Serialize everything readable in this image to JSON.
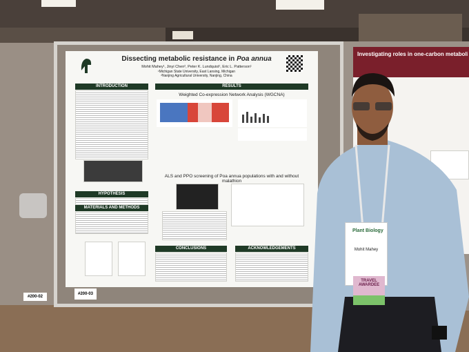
{
  "poster": {
    "title": "Dissecting metabolic resistance in",
    "title_species": "Poa annua",
    "authors": "Mohit Mahey¹, Jinyi Chen², Peter K. Lundquist¹, Eric L. Patterson¹",
    "affiliations": [
      "¹Michigan State University, East Lansing, Michigan",
      "²Nanjing Agricultural University, Nanjing, China"
    ],
    "sections": {
      "introduction": "INTRODUCTION",
      "results": "RESULTS",
      "wgcna": "Weighted Co-expression Network Analysis (WGCNA)",
      "screening": "ALS and PPO screening of Poa annua populations with and without malathion",
      "hypothesis": "HYPOTHESIS",
      "methods": "MATERIALS AND METHODS",
      "conclusions": "CONCLUSIONS",
      "acknowledgements": "ACKNOWLEDGEMENTS"
    }
  },
  "second_poster": {
    "title": "Investigating roles in one-carbon metabolism of hydroxymethyltransferase and the formate-tet"
  },
  "board_labels": [
    "#200-02",
    "#200-03"
  ],
  "badge": {
    "brand": "Plant Biology",
    "name": "Mohit Mahey",
    "ribbon": "TRAVEL AWARDEE"
  }
}
